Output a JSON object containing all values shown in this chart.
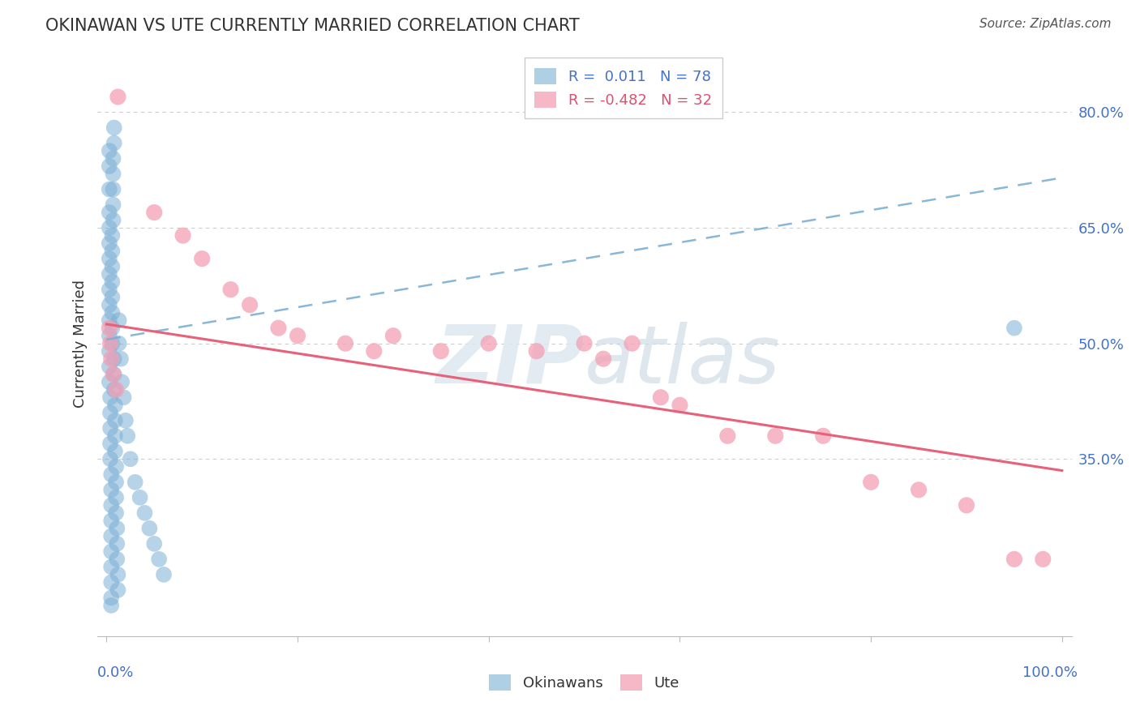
{
  "title": "OKINAWAN VS UTE CURRENTLY MARRIED CORRELATION CHART",
  "source": "Source: ZipAtlas.com",
  "ylabel": "Currently Married",
  "okinawan_color": "#7bafd4",
  "ute_color": "#f4a0b4",
  "okinawan_line_color": "#7bafd4",
  "ute_line_color": "#e8607a",
  "legend_blue_text": "#4472c4",
  "legend_pink_text": "#e05070",
  "ytick_color": "#4472c4",
  "xlabel_color": "#4472c4",
  "ytick_vals": [
    0.35,
    0.5,
    0.65,
    0.8
  ],
  "ytick_labels": [
    "35.0%",
    "50.0%",
    "65.0%",
    "80.0%"
  ],
  "ylim": [
    0.12,
    0.88
  ],
  "xlim": [
    -0.01,
    1.01
  ],
  "okin_line_x0": 0.0,
  "okin_line_y0": 0.505,
  "okin_line_x1": 1.0,
  "okin_line_y1": 0.715,
  "ute_line_x0": 0.0,
  "ute_line_y0": 0.525,
  "ute_line_x1": 1.0,
  "ute_line_y1": 0.335,
  "okinawan_x": [
    0.003,
    0.003,
    0.003,
    0.003,
    0.003,
    0.003,
    0.003,
    0.003,
    0.003,
    0.003,
    0.003,
    0.003,
    0.003,
    0.003,
    0.003,
    0.004,
    0.004,
    0.004,
    0.004,
    0.004,
    0.005,
    0.005,
    0.005,
    0.005,
    0.005,
    0.005,
    0.005,
    0.005,
    0.005,
    0.005,
    0.006,
    0.006,
    0.006,
    0.006,
    0.006,
    0.006,
    0.006,
    0.006,
    0.007,
    0.007,
    0.007,
    0.007,
    0.007,
    0.008,
    0.008,
    0.008,
    0.008,
    0.008,
    0.009,
    0.009,
    0.009,
    0.009,
    0.01,
    0.01,
    0.01,
    0.01,
    0.011,
    0.011,
    0.011,
    0.012,
    0.012,
    0.013,
    0.013,
    0.015,
    0.016,
    0.018,
    0.02,
    0.022,
    0.025,
    0.03,
    0.035,
    0.04,
    0.045,
    0.05,
    0.055,
    0.06,
    0.95
  ],
  "okinawan_y": [
    0.75,
    0.73,
    0.7,
    0.67,
    0.65,
    0.63,
    0.61,
    0.59,
    0.57,
    0.55,
    0.53,
    0.51,
    0.49,
    0.47,
    0.45,
    0.43,
    0.41,
    0.39,
    0.37,
    0.35,
    0.33,
    0.31,
    0.29,
    0.27,
    0.25,
    0.23,
    0.21,
    0.19,
    0.17,
    0.16,
    0.5,
    0.52,
    0.54,
    0.56,
    0.58,
    0.6,
    0.62,
    0.64,
    0.66,
    0.68,
    0.7,
    0.72,
    0.74,
    0.76,
    0.78,
    0.48,
    0.46,
    0.44,
    0.42,
    0.4,
    0.38,
    0.36,
    0.34,
    0.32,
    0.3,
    0.28,
    0.26,
    0.24,
    0.22,
    0.2,
    0.18,
    0.5,
    0.53,
    0.48,
    0.45,
    0.43,
    0.4,
    0.38,
    0.35,
    0.32,
    0.3,
    0.28,
    0.26,
    0.24,
    0.22,
    0.2,
    0.52
  ],
  "ute_x": [
    0.003,
    0.004,
    0.005,
    0.007,
    0.01,
    0.012,
    0.05,
    0.08,
    0.1,
    0.13,
    0.15,
    0.18,
    0.2,
    0.25,
    0.28,
    0.3,
    0.35,
    0.4,
    0.45,
    0.5,
    0.52,
    0.55,
    0.58,
    0.6,
    0.65,
    0.7,
    0.75,
    0.8,
    0.85,
    0.9,
    0.95,
    0.98
  ],
  "ute_y": [
    0.52,
    0.5,
    0.48,
    0.46,
    0.44,
    0.82,
    0.67,
    0.64,
    0.61,
    0.57,
    0.55,
    0.52,
    0.51,
    0.5,
    0.49,
    0.51,
    0.49,
    0.5,
    0.49,
    0.5,
    0.48,
    0.5,
    0.43,
    0.42,
    0.38,
    0.38,
    0.38,
    0.32,
    0.31,
    0.29,
    0.22,
    0.22
  ]
}
